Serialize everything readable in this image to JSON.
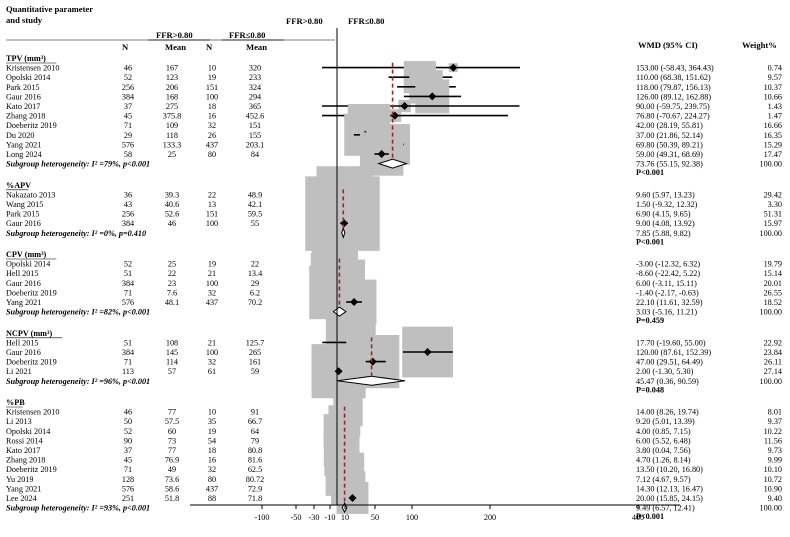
{
  "header": {
    "title_line1": "Quantitative parameter",
    "title_line2": "and study",
    "left_group": "FFR>0.80",
    "right_group": "FFR≤0.80",
    "wmd_col": "WMD (95% CI)",
    "weight_col": "Weight%",
    "col_n": "N",
    "col_mean": "Mean"
  },
  "chart_data": {
    "type": "forest",
    "axis": {
      "scale": "reciprocal",
      "ticks": [
        -100,
        -50,
        -30,
        -10,
        10,
        50,
        100,
        200,
        400
      ],
      "tick_labels": [
        "-100",
        "-50",
        "-30",
        "-10",
        "10",
        "50",
        "100",
        "200",
        "400"
      ]
    },
    "groups": [
      {
        "name": "TPV (mm³)",
        "studies": [
          {
            "study": "Kristensen 2010",
            "n1": "46",
            "m1": "167",
            "n2": "10",
            "m2": "320",
            "wmd": 153.0,
            "lo": -58.43,
            "hi": 364.43,
            "ci": "153.00 (-58.43, 364.43)",
            "w": "0.74"
          },
          {
            "study": "Opolski 2014",
            "n1": "52",
            "m1": "123",
            "n2": "19",
            "m2": "233",
            "wmd": 110.0,
            "lo": 68.38,
            "hi": 151.62,
            "ci": "110.00 (68.38, 151.62)",
            "w": "9.57"
          },
          {
            "study": "Park 2015",
            "n1": "256",
            "m1": "206",
            "n2": "151",
            "m2": "324",
            "wmd": 118.0,
            "lo": 79.87,
            "hi": 156.13,
            "ci": "118.00 (79.87, 156.13)",
            "w": "10.37"
          },
          {
            "study": "Gaur 2016",
            "n1": "384",
            "m1": "168",
            "n2": "100",
            "m2": "294",
            "wmd": 126.0,
            "lo": 89.12,
            "hi": 162.88,
            "ci": "126.00 (89.12, 162.88)",
            "w": "10.66"
          },
          {
            "study": "Kato 2017",
            "n1": "37",
            "m1": "275",
            "n2": "18",
            "m2": "365",
            "wmd": 90.0,
            "lo": -59.75,
            "hi": 239.75,
            "ci": "90.00 (-59.75, 239.75)",
            "w": "1.43"
          },
          {
            "study": "Zhang 2018",
            "n1": "45",
            "m1": "375.8",
            "n2": "16",
            "m2": "452.6",
            "wmd": 76.8,
            "lo": -70.67,
            "hi": 224.27,
            "ci": "76.80 (-70.67, 224.27)",
            "w": "1.47"
          },
          {
            "study": "Doeberitz 2019",
            "n1": "71",
            "m1": "109",
            "n2": "32",
            "m2": "151",
            "wmd": 42.0,
            "lo": 28.19,
            "hi": 55.81,
            "ci": "42.00 (28.19, 55.81)",
            "w": "16.66"
          },
          {
            "study": "Du 2020",
            "n1": "29",
            "m1": "118",
            "n2": "26",
            "m2": "155",
            "wmd": 37.0,
            "lo": 21.86,
            "hi": 52.14,
            "ci": "37.00 (21.86, 52.14)",
            "w": "16.35"
          },
          {
            "study": "Yang 2021",
            "n1": "576",
            "m1": "133.3",
            "n2": "437",
            "m2": "203.1",
            "wmd": 69.8,
            "lo": 50.39,
            "hi": 89.21,
            "ci": "69.80 (50.39, 89.21)",
            "w": "15.29"
          },
          {
            "study": "Long 2024",
            "n1": "58",
            "m1": "25",
            "n2": "80",
            "m2": "84",
            "wmd": 59.0,
            "lo": 49.31,
            "hi": 68.69,
            "ci": "59.00 (49.31, 68.69)",
            "w": "17.47"
          }
        ],
        "subgroup": {
          "label": "Subgroup heterogeneity: I² =79%, p<0.001",
          "wmd": 73.76,
          "lo": 55.15,
          "hi": 92.38,
          "ci": "73.76 (55.15, 92.38)",
          "w": "100.00"
        },
        "p": "P<0.001"
      },
      {
        "name": "%APV",
        "studies": [
          {
            "study": "Nakazato 2013",
            "n1": "36",
            "m1": "39.3",
            "n2": "22",
            "m2": "48.9",
            "wmd": 9.6,
            "lo": 5.97,
            "hi": 13.23,
            "ci": "9.60 (5.97, 13.23)",
            "w": "29.42"
          },
          {
            "study": "Wang 2015",
            "n1": "43",
            "m1": "40.6",
            "n2": "13",
            "m2": "42.1",
            "wmd": 1.5,
            "lo": -9.32,
            "hi": 12.32,
            "ci": "1.50 (-9.32, 12.32)",
            "w": "3.30"
          },
          {
            "study": "Park 2015",
            "n1": "256",
            "m1": "52.6",
            "n2": "151",
            "m2": "59.5",
            "wmd": 6.9,
            "lo": 4.15,
            "hi": 9.65,
            "ci": "6.90 (4.15, 9.65)",
            "w": "51.31"
          },
          {
            "study": "Gaur 2016",
            "n1": "384",
            "m1": "46",
            "n2": "100",
            "m2": "55",
            "wmd": 9.0,
            "lo": 4.08,
            "hi": 13.92,
            "ci": "9.00 (4.08, 13.92)",
            "w": "15.97"
          }
        ],
        "subgroup": {
          "label": "Subgroup heterogeneity: I² =0%, p=0.410",
          "wmd": 7.85,
          "lo": 5.88,
          "hi": 9.82,
          "ci": "7.85 (5.88, 9.82)",
          "w": "100.00"
        },
        "p": "P<0.001"
      },
      {
        "name": "CPV (mm³)",
        "studies": [
          {
            "study": "Opolski 2014",
            "n1": "52",
            "m1": "25",
            "n2": "19",
            "m2": "22",
            "wmd": -3.0,
            "lo": -12.32,
            "hi": 6.32,
            "ci": "-3.00 (-12.32, 6.32)",
            "w": "19.79"
          },
          {
            "study": "Hell 2015",
            "n1": "51",
            "m1": "22",
            "n2": "21",
            "m2": "13.4",
            "wmd": -8.6,
            "lo": -22.42,
            "hi": 5.22,
            "ci": "-8.60 (-22.42, 5.22)",
            "w": "15.14"
          },
          {
            "study": "Gaur 2016",
            "n1": "384",
            "m1": "23",
            "n2": "100",
            "m2": "29",
            "wmd": 6.0,
            "lo": -3.11,
            "hi": 15.11,
            "ci": "6.00 (-3.11, 15.11)",
            "w": "20.01"
          },
          {
            "study": "Doeberitz 2019",
            "n1": "71",
            "m1": "7.6",
            "n2": "32",
            "m2": "6.2",
            "wmd": -1.4,
            "lo": -2.17,
            "hi": -0.63,
            "ci": "-1.40 (-2.17, -0.63)",
            "w": "26.55"
          },
          {
            "study": "Yang 2021",
            "n1": "576",
            "m1": "48.1",
            "n2": "437",
            "m2": "70.2",
            "wmd": 22.1,
            "lo": 11.61,
            "hi": 32.59,
            "ci": "22.10 (11.61, 32.59)",
            "w": "18.52"
          }
        ],
        "subgroup": {
          "label": "Subgroup heterogeneity: I² =82%, p<0.001",
          "wmd": 3.03,
          "lo": -5.16,
          "hi": 11.21,
          "ci": "3.03 (-5.16, 11.21)",
          "w": "100.00"
        },
        "p": "P=0.459"
      },
      {
        "name": "NCPV (mm³)",
        "studies": [
          {
            "study": "Hell 2015",
            "n1": "51",
            "m1": "108",
            "n2": "21",
            "m2": "125.7",
            "wmd": 17.7,
            "lo": -19.6,
            "hi": 55.0,
            "ci": "17.70 (-19.60, 55.00)",
            "w": "22.92"
          },
          {
            "study": "Gaur 2016",
            "n1": "384",
            "m1": "145",
            "n2": "100",
            "m2": "265",
            "wmd": 120.0,
            "lo": 87.61,
            "hi": 152.39,
            "ci": "120.00 (87.61, 152.39)",
            "w": "23.84"
          },
          {
            "study": "Doeberitz 2019",
            "n1": "71",
            "m1": "114",
            "n2": "32",
            "m2": "161",
            "wmd": 47.0,
            "lo": 29.51,
            "hi": 64.49,
            "ci": "47.00 (29.51, 64.49)",
            "w": "26.11"
          },
          {
            "study": "Li 2021",
            "n1": "113",
            "m1": "57",
            "n2": "61",
            "m2": "59",
            "wmd": 2.0,
            "lo": -1.3,
            "hi": 5.3,
            "ci": "2.00 (-1.30, 5.30)",
            "w": "27.14"
          }
        ],
        "subgroup": {
          "label": "Subgroup heterogeneity: I² =96%, p<0.001",
          "wmd": 45.47,
          "lo": 0.36,
          "hi": 90.59,
          "ci": "45.47 (0.36, 90.59)",
          "w": "100.00"
        },
        "p": "P=0.048"
      },
      {
        "name": "%PB",
        "studies": [
          {
            "study": "Kristensen 2010",
            "n1": "46",
            "m1": "77",
            "n2": "10",
            "m2": "91",
            "wmd": 14.0,
            "lo": 8.26,
            "hi": 19.74,
            "ci": "14.00 (8.26, 19.74)",
            "w": "8.01"
          },
          {
            "study": "Li 2013",
            "n1": "50",
            "m1": "57.5",
            "n2": "35",
            "m2": "66.7",
            "wmd": 9.2,
            "lo": 5.01,
            "hi": 13.39,
            "ci": "9.20 (5.01, 13.39)",
            "w": "9.37"
          },
          {
            "study": "Opolski 2014",
            "n1": "52",
            "m1": "60",
            "n2": "19",
            "m2": "64",
            "wmd": 4.0,
            "lo": 0.85,
            "hi": 7.15,
            "ci": "4.00 (0.85, 7.15)",
            "w": "10.22"
          },
          {
            "study": "Rossi 2014",
            "n1": "90",
            "m1": "73",
            "n2": "54",
            "m2": "79",
            "wmd": 6.0,
            "lo": 5.52,
            "hi": 6.48,
            "ci": "6.00 (5.52, 6.48)",
            "w": "11.56"
          },
          {
            "study": "Kato 2017",
            "n1": "37",
            "m1": "77",
            "n2": "18",
            "m2": "80.8",
            "wmd": 3.8,
            "lo": 0.04,
            "hi": 7.56,
            "ci": "3.80 (0.04, 7.56)",
            "w": "9.73"
          },
          {
            "study": "Zhang 2018",
            "n1": "45",
            "m1": "76.9",
            "n2": "16",
            "m2": "81.6",
            "wmd": 4.7,
            "lo": 1.26,
            "hi": 8.14,
            "ci": "4.70 (1.26, 8.14)",
            "w": "9.99"
          },
          {
            "study": "Doeberitz 2019",
            "n1": "71",
            "m1": "49",
            "n2": "32",
            "m2": "62.5",
            "wmd": 13.5,
            "lo": 10.2,
            "hi": 16.8,
            "ci": "13.50 (10.20, 16.80)",
            "w": "10.10"
          },
          {
            "study": "Yu 2019",
            "n1": "128",
            "m1": "73.6",
            "n2": "80",
            "m2": "80.72",
            "wmd": 7.12,
            "lo": 4.67,
            "hi": 9.57,
            "ci": "7.12 (4.67, 9.57)",
            "w": "10.72"
          },
          {
            "study": "Yang 2021",
            "n1": "576",
            "m1": "58.6",
            "n2": "437",
            "m2": "72.9",
            "wmd": 14.3,
            "lo": 12.13,
            "hi": 16.47,
            "ci": "14.30 (12.13, 16.47)",
            "w": "10.90"
          },
          {
            "study": "Lee 2024",
            "n1": "251",
            "m1": "51.8",
            "n2": "88",
            "m2": "71.8",
            "wmd": 20.0,
            "lo": 15.85,
            "hi": 24.15,
            "ci": "20.00 (15.85, 24.15)",
            "w": "9.40"
          }
        ],
        "subgroup": {
          "label": "Subgroup heterogeneity: I² =93%, p<0.001",
          "wmd": 9.49,
          "lo": 6.57,
          "hi": 12.41,
          "ci": "9.49 (6.57, 12.41)",
          "w": "100.00"
        },
        "p": "P<0.001"
      }
    ],
    "colors": {
      "box": "#bfbfbf",
      "point": "#000000",
      "overall_line": "#a0222a",
      "axis": "#000000"
    }
  }
}
